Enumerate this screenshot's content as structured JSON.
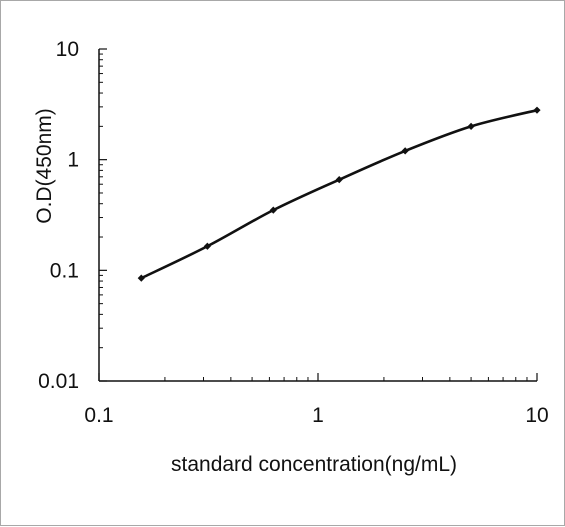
{
  "chart_data": {
    "type": "line",
    "title": "",
    "xlabel": "standard concentration(ng/mL)",
    "ylabel": "O.D(450nm)",
    "x_scale": "log",
    "y_scale": "log",
    "xlim": [
      0.1,
      10
    ],
    "ylim": [
      0.01,
      10
    ],
    "x_ticks": [
      {
        "value": 0.1,
        "label": "0.1"
      },
      {
        "value": 1,
        "label": "1"
      },
      {
        "value": 10,
        "label": "10"
      }
    ],
    "y_ticks": [
      {
        "value": 0.01,
        "label": "0.01"
      },
      {
        "value": 0.1,
        "label": "0.1"
      },
      {
        "value": 1,
        "label": "1"
      },
      {
        "value": 10,
        "label": "10"
      }
    ],
    "grid": false,
    "legend": "none",
    "series": [
      {
        "x": [
          0.156,
          0.3125,
          0.625,
          1.25,
          2.5,
          5,
          10
        ],
        "y": [
          0.085,
          0.165,
          0.35,
          0.66,
          1.2,
          2.0,
          2.8
        ]
      }
    ],
    "colors": {
      "line": "#111111",
      "marker": "#111111",
      "axis": "#111111"
    }
  }
}
